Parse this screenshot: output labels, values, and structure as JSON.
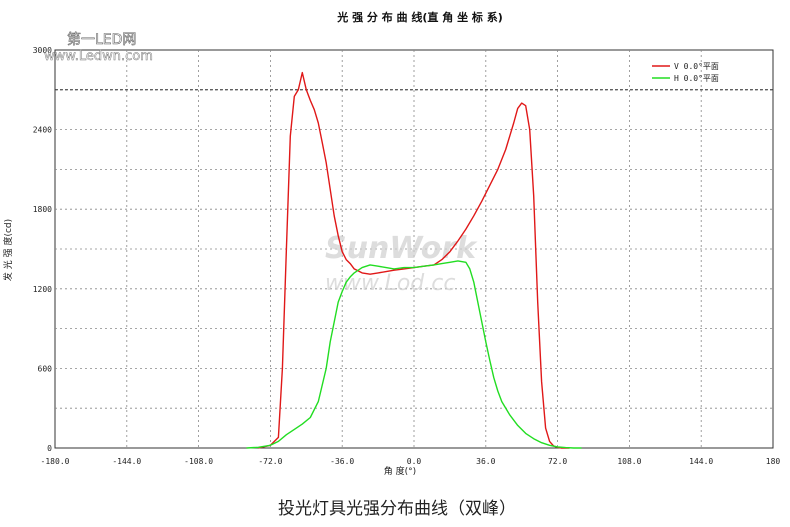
{
  "chart_data": {
    "type": "line",
    "title": "光 强 分 布 曲 线(直 角 坐 标 系)",
    "xlabel": "角 度(°)",
    "ylabel": "发 光 强 度(cd)",
    "xlim": [
      -180,
      180
    ],
    "ylim": [
      0,
      3000
    ],
    "xticks": [
      -180,
      -144,
      -108,
      -72,
      -36,
      0,
      36,
      72,
      108,
      144,
      180
    ],
    "xtick_labels": [
      "-180.0",
      "-144.0",
      "-108.0",
      "-72.0",
      "-36.0",
      "0.0",
      "36.0",
      "72.0",
      "108.0",
      "144.0",
      "180"
    ],
    "yticks": [
      0,
      600,
      1200,
      1800,
      2400,
      3000
    ],
    "ytick_labels": [
      "0",
      "600",
      "1200",
      "1800",
      "2400",
      "3000"
    ],
    "grid": true,
    "legend_position": "top-right",
    "reference_line_y": 2700,
    "series": [
      {
        "name": "V 0.0°平面",
        "color": "#e01818",
        "x": [
          -78,
          -72,
          -68,
          -66,
          -64,
          -62,
          -60,
          -58,
          -56,
          -54,
          -52,
          -50,
          -48,
          -46,
          -44,
          -42,
          -40,
          -38,
          -36,
          -34,
          -32,
          -30,
          -26,
          -22,
          -18,
          -14,
          -10,
          -5,
          0,
          5,
          10,
          14,
          18,
          22,
          26,
          30,
          34,
          38,
          42,
          46,
          50,
          52,
          54,
          56,
          58,
          60,
          62,
          64,
          66,
          68,
          70,
          72,
          74,
          78
        ],
        "y": [
          0,
          20,
          80,
          600,
          1500,
          2350,
          2650,
          2700,
          2830,
          2700,
          2620,
          2550,
          2450,
          2300,
          2150,
          1950,
          1750,
          1600,
          1480,
          1420,
          1390,
          1350,
          1320,
          1310,
          1320,
          1330,
          1340,
          1350,
          1360,
          1370,
          1380,
          1420,
          1480,
          1560,
          1650,
          1750,
          1860,
          1980,
          2100,
          2250,
          2450,
          2560,
          2600,
          2580,
          2400,
          1900,
          1100,
          500,
          150,
          50,
          15,
          5,
          0,
          0
        ]
      },
      {
        "name": "H 0.0°平面",
        "color": "#22dd22",
        "x": [
          -84,
          -78,
          -72,
          -68,
          -64,
          -60,
          -56,
          -52,
          -48,
          -44,
          -42,
          -40,
          -38,
          -36,
          -34,
          -32,
          -30,
          -26,
          -22,
          -18,
          -14,
          -10,
          -5,
          0,
          5,
          10,
          14,
          18,
          22,
          26,
          28,
          30,
          32,
          34,
          36,
          38,
          40,
          42,
          44,
          48,
          52,
          56,
          60,
          64,
          68,
          72,
          76,
          80,
          84
        ],
        "y": [
          0,
          5,
          20,
          50,
          100,
          140,
          180,
          230,
          350,
          600,
          800,
          950,
          1100,
          1180,
          1250,
          1290,
          1320,
          1360,
          1380,
          1370,
          1360,
          1350,
          1360,
          1360,
          1370,
          1380,
          1390,
          1400,
          1410,
          1400,
          1350,
          1250,
          1100,
          950,
          800,
          660,
          530,
          430,
          350,
          250,
          170,
          110,
          70,
          40,
          20,
          8,
          3,
          0,
          0
        ]
      }
    ]
  },
  "watermark": {
    "site_logo": "第一LED网",
    "site_url": "www.Ledwn.com",
    "brand": "SunWork",
    "brand_url": "www.Lod.cc"
  },
  "caption": "投光灯具光强分布曲线（双峰）"
}
